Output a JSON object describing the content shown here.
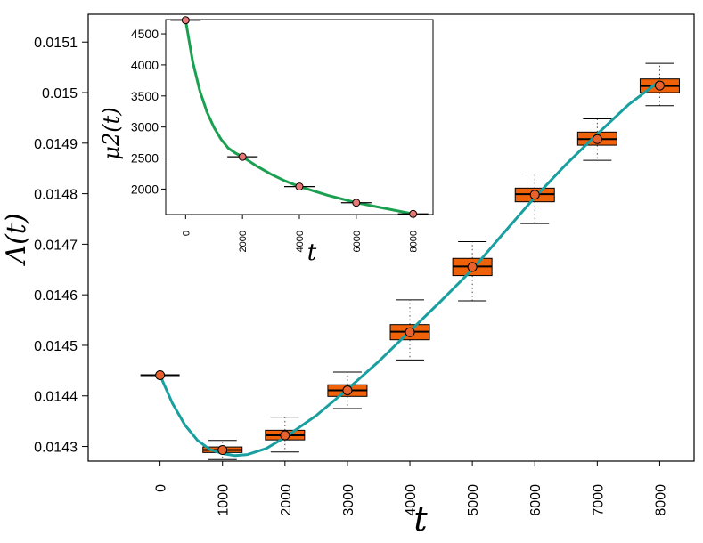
{
  "colors": {
    "main_curve": "#1a9fa0",
    "inset_curve": "#1aa050",
    "box_fill": "#f0620a",
    "point_fill": "#e8622e",
    "inset_point_fill": "#e77878"
  },
  "chart_data": [
    {
      "type": "box",
      "xlabel": "t",
      "ylabel": "Λ(t)",
      "xticks": [
        0,
        1000,
        2000,
        3000,
        4000,
        5000,
        6000,
        7000,
        8000
      ],
      "xtick_labels": [
        "0",
        "1000",
        "2000",
        "3000",
        "4000",
        "5000",
        "6000",
        "7000",
        "8000"
      ],
      "yticks": [
        0.0143,
        0.0144,
        0.0145,
        0.0146,
        0.0147,
        0.0148,
        0.0149,
        0.015,
        0.0151
      ],
      "ytick_labels": [
        "0.0143",
        "0.0144",
        "0.0145",
        "0.0146",
        "0.0147",
        "0.0148",
        "0.0149",
        "0.015",
        "0.0151"
      ],
      "xlim": [
        -1150,
        8550
      ],
      "ylim": [
        0.014271,
        0.015155
      ],
      "boxes": [
        {
          "x": 0,
          "mean": 0.014441,
          "median": 0.014441,
          "q1": 0.014441,
          "q3": 0.014441,
          "whisker_low": 0.014441,
          "whisker_high": 0.014441
        },
        {
          "x": 1000,
          "mean": 0.014293,
          "median": 0.014293,
          "q1": 0.014288,
          "q3": 0.014299,
          "whisker_low": 0.014274,
          "whisker_high": 0.014312
        },
        {
          "x": 2000,
          "mean": 0.014322,
          "median": 0.014322,
          "q1": 0.014313,
          "q3": 0.014332,
          "whisker_low": 0.014289,
          "whisker_high": 0.014358
        },
        {
          "x": 3000,
          "mean": 0.014411,
          "median": 0.014411,
          "q1": 0.014399,
          "q3": 0.014422,
          "whisker_low": 0.014375,
          "whisker_high": 0.014447
        },
        {
          "x": 4000,
          "mean": 0.014526,
          "median": 0.014527,
          "q1": 0.014511,
          "q3": 0.014541,
          "whisker_low": 0.014471,
          "whisker_high": 0.01459
        },
        {
          "x": 5000,
          "mean": 0.014655,
          "median": 0.014656,
          "q1": 0.014638,
          "q3": 0.014672,
          "whisker_low": 0.014588,
          "whisker_high": 0.014705
        },
        {
          "x": 6000,
          "mean": 0.014798,
          "median": 0.014799,
          "q1": 0.014784,
          "q3": 0.014811,
          "whisker_low": 0.014741,
          "whisker_high": 0.014839
        },
        {
          "x": 7000,
          "mean": 0.014908,
          "median": 0.014908,
          "q1": 0.014896,
          "q3": 0.014922,
          "whisker_low": 0.014866,
          "whisker_high": 0.014948
        },
        {
          "x": 8000,
          "mean": 0.015014,
          "median": 0.015013,
          "q1": 0.015,
          "q3": 0.015027,
          "whisker_low": 0.014974,
          "whisker_high": 0.015058
        }
      ],
      "curve": {
        "x": [
          0,
          200,
          400,
          600,
          800,
          1000,
          1200,
          1400,
          1700,
          2000,
          2500,
          3000,
          3500,
          4000,
          4500,
          5000,
          5500,
          6000,
          6500,
          7000,
          7500,
          8000
        ],
        "y": [
          0.014441,
          0.014385,
          0.014342,
          0.014312,
          0.014294,
          0.014286,
          0.014282,
          0.014284,
          0.014296,
          0.014318,
          0.014361,
          0.014413,
          0.014468,
          0.014528,
          0.014588,
          0.01465,
          0.014722,
          0.014793,
          0.014858,
          0.014918,
          0.014976,
          0.015023
        ]
      }
    },
    {
      "type": "line",
      "inset": true,
      "xlabel": "t",
      "ylabel": "μ2(t)",
      "xticks": [
        0,
        2000,
        4000,
        6000,
        8000
      ],
      "xtick_labels": [
        "0",
        "2000",
        "4000",
        "6000",
        "8000"
      ],
      "yticks": [
        2000,
        2500,
        3000,
        3500,
        4000,
        4500
      ],
      "ytick_labels": [
        "2000",
        "2500",
        "3000",
        "3500",
        "4000",
        "4500"
      ],
      "xlim": [
        -700,
        8700
      ],
      "ylim": [
        1590,
        4730
      ],
      "points": [
        {
          "x": 0,
          "y": 4720
        },
        {
          "x": 2000,
          "y": 2520
        },
        {
          "x": 4000,
          "y": 2040
        },
        {
          "x": 6000,
          "y": 1780
        },
        {
          "x": 8000,
          "y": 1600
        }
      ],
      "curve": {
        "x": [
          0,
          250,
          500,
          750,
          1000,
          1250,
          1500,
          1750,
          2000,
          2500,
          3000,
          3500,
          4000,
          5000,
          6000,
          7000,
          8000
        ],
        "y": [
          4720,
          4050,
          3580,
          3240,
          2990,
          2800,
          2660,
          2580,
          2520,
          2370,
          2240,
          2130,
          2040,
          1900,
          1780,
          1690,
          1600
        ]
      }
    }
  ]
}
